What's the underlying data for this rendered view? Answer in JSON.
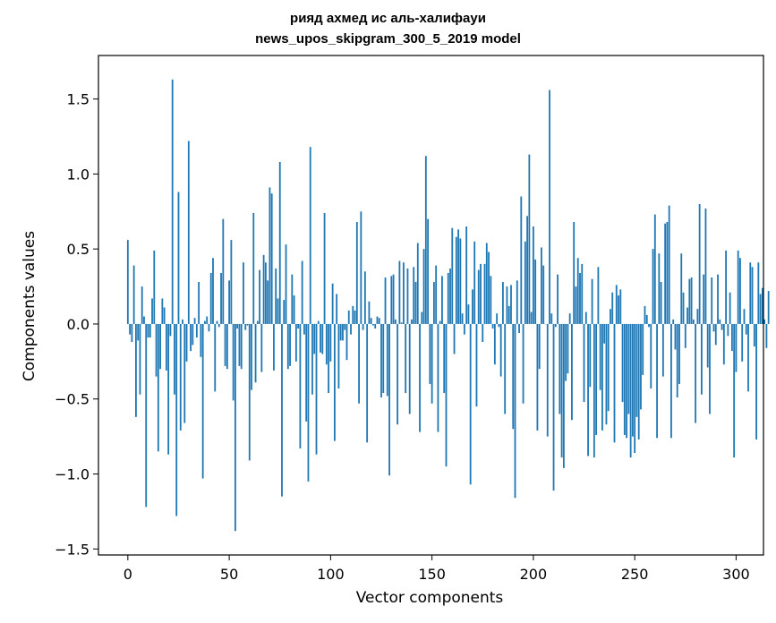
{
  "chart_data": {
    "type": "bar",
    "title": "рияд ахмед ис аль-халифауи",
    "subtitle": "news_upos_skipgram_300_5_2019 model",
    "xlabel": "Vector components",
    "ylabel": "Components values",
    "xlim": [
      -14.5,
      313.5
    ],
    "ylim": [
      -1.54,
      1.79
    ],
    "xticks": [
      0,
      50,
      100,
      150,
      200,
      250,
      300
    ],
    "yticks": [
      -1.5,
      -1.0,
      -0.5,
      0.0,
      0.5,
      1.0,
      1.5
    ],
    "xtick_labels": [
      "0",
      "50",
      "100",
      "150",
      "200",
      "250",
      "300"
    ],
    "ytick_labels": [
      "−1.5",
      "−1.0",
      "−0.5",
      "0.0",
      "0.5",
      "1.0",
      "1.5"
    ],
    "grid": false,
    "color": "#1f77b4",
    "values": [
      0.56,
      -0.07,
      -0.12,
      0.39,
      -0.62,
      -0.11,
      -0.47,
      0.25,
      0.05,
      -1.22,
      -0.09,
      -0.09,
      0.17,
      0.49,
      -0.35,
      -0.85,
      -0.3,
      0.17,
      0.11,
      -0.31,
      -0.87,
      -0.08,
      1.63,
      -0.47,
      -1.28,
      0.88,
      -0.71,
      0.03,
      -0.66,
      -0.25,
      1.22,
      -0.18,
      -0.14,
      0.04,
      -0.09,
      0.28,
      -0.22,
      -1.03,
      0.02,
      0.05,
      -0.05,
      0.34,
      0.44,
      -0.45,
      0.02,
      -0.02,
      0.34,
      0.7,
      -0.28,
      -0.3,
      0.29,
      0.56,
      -0.51,
      -1.38,
      -0.03,
      -0.28,
      -0.3,
      0.41,
      -0.04,
      -0.01,
      -0.91,
      -0.44,
      0.74,
      -0.39,
      0.02,
      0.36,
      -0.32,
      0.46,
      0.41,
      0.29,
      0.91,
      0.87,
      -0.31,
      0.37,
      0.17,
      1.08,
      -1.15,
      0.16,
      0.53,
      -0.3,
      -0.28,
      0.33,
      0.19,
      -0.25,
      -0.03,
      -0.83,
      0.42,
      -0.07,
      -0.65,
      -1.05,
      1.18,
      -0.47,
      -0.2,
      -0.87,
      0.02,
      -0.19,
      -0.2,
      0.74,
      -0.27,
      -0.46,
      -0.25,
      0.27,
      -0.78,
      0.2,
      -0.43,
      -0.11,
      -0.11,
      -0.04,
      -0.24,
      0.09,
      -0.07,
      0.12,
      0.09,
      0.68,
      -0.53,
      0.75,
      -0.04,
      0.35,
      -0.79,
      0.15,
      0.04,
      -0.01,
      -0.03,
      0.05,
      0.04,
      -0.49,
      -0.46,
      0.31,
      -0.48,
      -1.01,
      0.32,
      0.33,
      0.03,
      -0.67,
      0.42,
      0.01,
      0.41,
      -0.46,
      0.37,
      -0.6,
      0.03,
      0.38,
      0.28,
      0.54,
      -0.72,
      0.08,
      0.5,
      1.12,
      0.7,
      -0.4,
      -0.53,
      0.28,
      0.39,
      -0.72,
      0.02,
      0.32,
      -0.46,
      -0.95,
      0.34,
      0.37,
      0.64,
      -0.2,
      0.58,
      0.63,
      0.57,
      0.07,
      -0.07,
      0.65,
      0.13,
      -1.07,
      0.23,
      0.55,
      -0.55,
      0.36,
      0.4,
      -0.12,
      0.4,
      0.54,
      0.48,
      0.32,
      -0.03,
      -0.27,
      0.07,
      -0.02,
      -0.35,
      0.28,
      -0.6,
      0.25,
      0.12,
      0.26,
      -0.7,
      -1.16,
      0.29,
      -0.06,
      0.85,
      -0.53,
      0.55,
      0.72,
      1.13,
      0.08,
      0.65,
      0.43,
      -0.71,
      -0.3,
      0.51,
      0.39,
      0.0,
      -0.75,
      1.56,
      0.07,
      -1.11,
      -0.02,
      0.33,
      -0.6,
      -0.89,
      -0.96,
      -0.38,
      -0.33,
      0.07,
      -0.64,
      0.68,
      0.25,
      0.44,
      0.34,
      0.4,
      -0.52,
      0.08,
      -0.88,
      -0.42,
      0.3,
      -0.89,
      -0.74,
      0.38,
      -0.44,
      -0.71,
      -0.13,
      -0.67,
      -0.58,
      0.1,
      0.21,
      -0.79,
      0.26,
      0.19,
      0.23,
      -0.52,
      -0.74,
      -0.76,
      -0.6,
      -0.89,
      -0.75,
      -0.86,
      -0.62,
      -0.77,
      -0.57,
      -0.34,
      0.12,
      0.06,
      -0.02,
      -0.43,
      0.5,
      0.73,
      -0.76,
      0.47,
      0.28,
      -0.35,
      0.67,
      0.68,
      0.79,
      -0.76,
      0.03,
      -0.17,
      -0.49,
      -0.4,
      0.47,
      0.21,
      -0.16,
      0.11,
      0.3,
      0.31,
      0.03,
      -0.66,
      0.1,
      0.8,
      -0.47,
      0.33,
      0.77,
      -0.29,
      -0.6,
      0.31,
      -0.05,
      -0.14,
      0.33,
      0.03,
      -0.04,
      -0.27,
      0.49,
      -0.08,
      0.21,
      -0.18,
      -0.89,
      -0.32,
      0.49,
      0.44,
      -0.25,
      0.1,
      -0.07,
      -0.45,
      0.41,
      0.38,
      -0.15,
      -0.77,
      0.41,
      0.2,
      0.24,
      0.03,
      -0.16,
      0.22
    ]
  }
}
